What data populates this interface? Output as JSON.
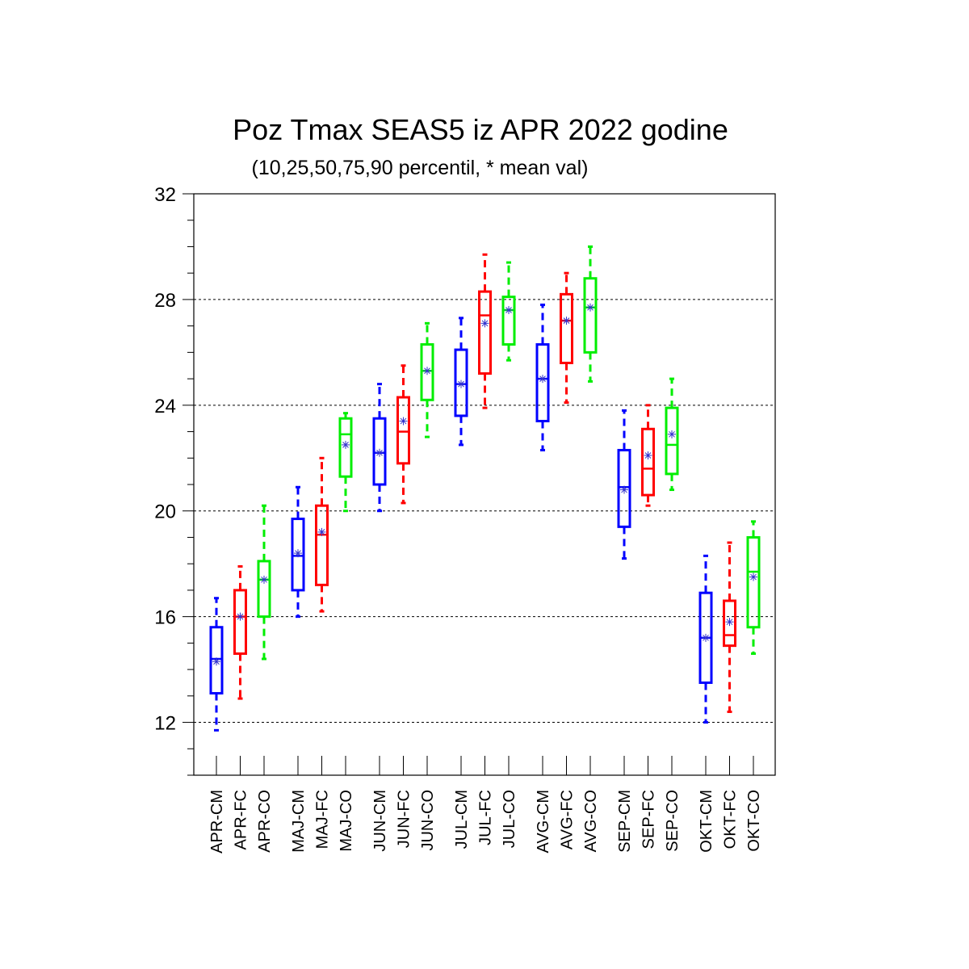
{
  "chart_data": {
    "type": "boxplot",
    "title": "Poz Tmax SEAS5 iz APR 2022 godine",
    "subtitle": "(10,25,50,75,90 percentil, * mean val)",
    "ylim": [
      10,
      32
    ],
    "yticks": [
      12,
      16,
      20,
      24,
      28,
      32
    ],
    "ytick_labels": [
      "12",
      "16",
      "20",
      "24",
      "28",
      "32"
    ],
    "grid": true,
    "colors": {
      "CM": "#0000ff",
      "FC": "#ff0000",
      "CO": "#00ee00"
    },
    "boxes": [
      {
        "label": "APR-CM",
        "group": "CM",
        "p10": 11.7,
        "p25": 13.1,
        "p50": 14.4,
        "p75": 15.6,
        "p90": 16.7,
        "mean": 14.3
      },
      {
        "label": "APR-FC",
        "group": "FC",
        "p10": 12.9,
        "p25": 14.6,
        "p50": 16.0,
        "p75": 17.0,
        "p90": 17.9,
        "mean": 16.0
      },
      {
        "label": "APR-CO",
        "group": "CO",
        "p10": 14.4,
        "p25": 16.0,
        "p50": 17.4,
        "p75": 18.1,
        "p90": 20.2,
        "mean": 17.4
      },
      {
        "label": "MAJ-CM",
        "group": "CM",
        "p10": 16.0,
        "p25": 17.0,
        "p50": 18.3,
        "p75": 19.7,
        "p90": 20.9,
        "mean": 18.4
      },
      {
        "label": "MAJ-FC",
        "group": "FC",
        "p10": 16.2,
        "p25": 17.2,
        "p50": 19.1,
        "p75": 20.2,
        "p90": 22.0,
        "mean": 19.2
      },
      {
        "label": "MAJ-CO",
        "group": "CO",
        "p10": 20.0,
        "p25": 21.3,
        "p50": 22.9,
        "p75": 23.5,
        "p90": 23.7,
        "mean": 22.5
      },
      {
        "label": "JUN-CM",
        "group": "CM",
        "p10": 20.0,
        "p25": 21.0,
        "p50": 22.2,
        "p75": 23.5,
        "p90": 24.8,
        "mean": 22.2
      },
      {
        "label": "JUN-FC",
        "group": "FC",
        "p10": 20.3,
        "p25": 21.8,
        "p50": 23.0,
        "p75": 24.3,
        "p90": 25.5,
        "mean": 23.4
      },
      {
        "label": "JUN-CO",
        "group": "CO",
        "p10": 22.8,
        "p25": 24.2,
        "p50": 25.3,
        "p75": 26.3,
        "p90": 27.1,
        "mean": 25.3
      },
      {
        "label": "JUL-CM",
        "group": "CM",
        "p10": 22.5,
        "p25": 23.6,
        "p50": 24.8,
        "p75": 26.1,
        "p90": 27.3,
        "mean": 24.8
      },
      {
        "label": "JUL-FC",
        "group": "FC",
        "p10": 23.9,
        "p25": 25.2,
        "p50": 27.4,
        "p75": 28.3,
        "p90": 29.7,
        "mean": 27.1
      },
      {
        "label": "JUL-CO",
        "group": "CO",
        "p10": 25.7,
        "p25": 26.3,
        "p50": 27.6,
        "p75": 28.1,
        "p90": 29.4,
        "mean": 27.6
      },
      {
        "label": "AVG-CM",
        "group": "CM",
        "p10": 22.3,
        "p25": 23.4,
        "p50": 25.0,
        "p75": 26.3,
        "p90": 27.8,
        "mean": 25.0
      },
      {
        "label": "AVG-FC",
        "group": "FC",
        "p10": 24.1,
        "p25": 25.6,
        "p50": 27.2,
        "p75": 28.2,
        "p90": 29.0,
        "mean": 27.2
      },
      {
        "label": "AVG-CO",
        "group": "CO",
        "p10": 24.9,
        "p25": 26.0,
        "p50": 27.7,
        "p75": 28.8,
        "p90": 30.0,
        "mean": 27.7
      },
      {
        "label": "SEP-CM",
        "group": "CM",
        "p10": 18.2,
        "p25": 19.4,
        "p50": 20.9,
        "p75": 22.3,
        "p90": 23.8,
        "mean": 20.8
      },
      {
        "label": "SEP-FC",
        "group": "FC",
        "p10": 20.2,
        "p25": 20.6,
        "p50": 21.6,
        "p75": 23.1,
        "p90": 24.0,
        "mean": 22.1
      },
      {
        "label": "SEP-CO",
        "group": "CO",
        "p10": 20.8,
        "p25": 21.4,
        "p50": 22.5,
        "p75": 23.9,
        "p90": 25.0,
        "mean": 22.9
      },
      {
        "label": "OKT-CM",
        "group": "CM",
        "p10": 12.0,
        "p25": 13.5,
        "p50": 15.2,
        "p75": 16.9,
        "p90": 18.3,
        "mean": 15.2
      },
      {
        "label": "OKT-FC",
        "group": "FC",
        "p10": 12.4,
        "p25": 14.9,
        "p50": 15.3,
        "p75": 16.6,
        "p90": 18.8,
        "mean": 15.8
      },
      {
        "label": "OKT-CO",
        "group": "CO",
        "p10": 14.6,
        "p25": 15.6,
        "p50": 17.7,
        "p75": 19.0,
        "p90": 19.6,
        "mean": 17.5
      }
    ]
  }
}
